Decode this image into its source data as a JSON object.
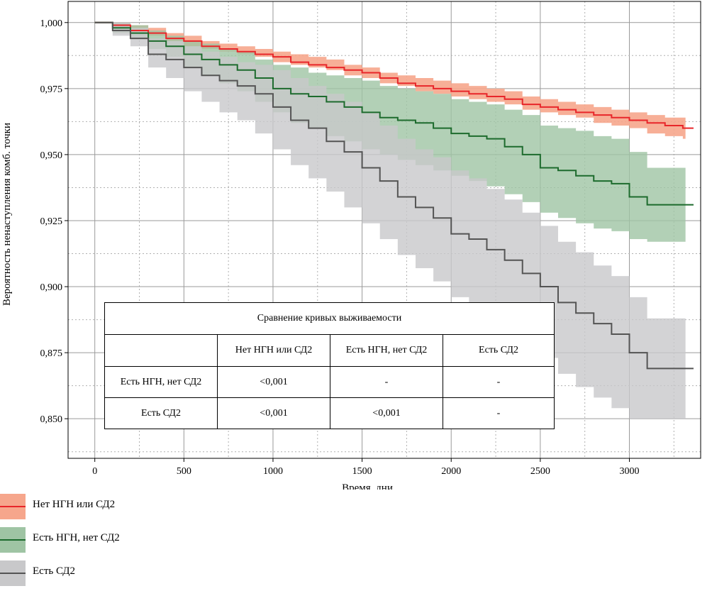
{
  "chart_data": {
    "type": "line",
    "xlabel": "Время, дни",
    "ylabel": "Вероятность ненаступления комб. точки",
    "xlim": [
      -150,
      3400
    ],
    "ylim": [
      0.835,
      1.008
    ],
    "x_ticks": [
      0,
      500,
      1000,
      1500,
      2000,
      2500,
      3000
    ],
    "x_tick_labels": [
      "0",
      "500",
      "1000",
      "1500",
      "2000",
      "2500",
      "3000"
    ],
    "y_ticks": [
      0.85,
      0.875,
      0.9,
      0.925,
      0.95,
      0.975,
      1.0
    ],
    "y_tick_labels": [
      "0,850",
      "0,875",
      "0,900",
      "0,925",
      "0,950",
      "0,975",
      "1,000"
    ],
    "grid": true,
    "series": [
      {
        "name": "Нет НГН или СД2",
        "color": "#e8262a",
        "band_color": "#f6a68c",
        "step": true,
        "x": [
          0,
          100,
          200,
          300,
          400,
          500,
          600,
          700,
          800,
          900,
          1000,
          1100,
          1200,
          1300,
          1400,
          1500,
          1600,
          1700,
          1800,
          1900,
          2000,
          2100,
          2200,
          2300,
          2400,
          2500,
          2600,
          2700,
          2800,
          2900,
          3000,
          3100,
          3200,
          3300
        ],
        "y": [
          1.0,
          0.999,
          0.997,
          0.996,
          0.994,
          0.993,
          0.991,
          0.99,
          0.989,
          0.988,
          0.987,
          0.985,
          0.984,
          0.983,
          0.982,
          0.981,
          0.979,
          0.977,
          0.976,
          0.975,
          0.974,
          0.973,
          0.972,
          0.971,
          0.969,
          0.968,
          0.967,
          0.966,
          0.965,
          0.964,
          0.963,
          0.962,
          0.961,
          0.96
        ],
        "lower": [
          1.0,
          0.998,
          0.996,
          0.995,
          0.993,
          0.991,
          0.99,
          0.989,
          0.988,
          0.987,
          0.985,
          0.984,
          0.983,
          0.982,
          0.98,
          0.979,
          0.977,
          0.976,
          0.974,
          0.973,
          0.972,
          0.971,
          0.97,
          0.969,
          0.967,
          0.966,
          0.965,
          0.964,
          0.962,
          0.961,
          0.96,
          0.958,
          0.957,
          0.956
        ],
        "upper": [
          1.0,
          1.0,
          0.999,
          0.998,
          0.996,
          0.995,
          0.993,
          0.992,
          0.991,
          0.99,
          0.989,
          0.988,
          0.987,
          0.986,
          0.984,
          0.983,
          0.981,
          0.98,
          0.979,
          0.978,
          0.977,
          0.976,
          0.975,
          0.974,
          0.972,
          0.971,
          0.97,
          0.969,
          0.968,
          0.967,
          0.966,
          0.965,
          0.964,
          0.964
        ]
      },
      {
        "name": "Есть НГН, нет СД2",
        "color": "#1d6b2d",
        "band_color": "#9fc4a4",
        "step": true,
        "x": [
          0,
          100,
          200,
          300,
          400,
          500,
          600,
          700,
          800,
          900,
          1000,
          1100,
          1200,
          1300,
          1400,
          1500,
          1600,
          1700,
          1800,
          1900,
          2000,
          2100,
          2200,
          2300,
          2400,
          2500,
          2600,
          2700,
          2800,
          2900,
          3000,
          3100,
          3200,
          3300
        ],
        "y": [
          1.0,
          0.998,
          0.996,
          0.993,
          0.991,
          0.988,
          0.986,
          0.984,
          0.982,
          0.979,
          0.975,
          0.973,
          0.972,
          0.97,
          0.968,
          0.966,
          0.964,
          0.963,
          0.962,
          0.96,
          0.958,
          0.957,
          0.956,
          0.953,
          0.95,
          0.945,
          0.944,
          0.942,
          0.94,
          0.939,
          0.934,
          0.931,
          0.931,
          0.931
        ],
        "lower": [
          1.0,
          0.996,
          0.994,
          0.99,
          0.987,
          0.983,
          0.98,
          0.977,
          0.974,
          0.97,
          0.966,
          0.962,
          0.96,
          0.957,
          0.955,
          0.952,
          0.95,
          0.948,
          0.946,
          0.944,
          0.942,
          0.94,
          0.938,
          0.935,
          0.932,
          0.928,
          0.926,
          0.924,
          0.922,
          0.921,
          0.918,
          0.917,
          0.917,
          0.917
        ],
        "upper": [
          1.0,
          1.0,
          0.999,
          0.997,
          0.995,
          0.993,
          0.992,
          0.99,
          0.989,
          0.986,
          0.984,
          0.983,
          0.981,
          0.98,
          0.979,
          0.978,
          0.976,
          0.975,
          0.974,
          0.973,
          0.971,
          0.97,
          0.969,
          0.967,
          0.965,
          0.961,
          0.96,
          0.959,
          0.957,
          0.956,
          0.951,
          0.945,
          0.945,
          0.945
        ]
      },
      {
        "name": "Есть СД2",
        "color": "#545454",
        "band_color": "#c8c8ca",
        "step": true,
        "x": [
          0,
          100,
          200,
          300,
          400,
          500,
          600,
          700,
          800,
          900,
          1000,
          1100,
          1200,
          1300,
          1400,
          1500,
          1600,
          1700,
          1800,
          1900,
          2000,
          2100,
          2200,
          2300,
          2400,
          2500,
          2600,
          2700,
          2800,
          2900,
          3000,
          3100,
          3200,
          3300
        ],
        "y": [
          1.0,
          0.997,
          0.994,
          0.988,
          0.986,
          0.983,
          0.98,
          0.978,
          0.976,
          0.973,
          0.968,
          0.963,
          0.96,
          0.955,
          0.951,
          0.945,
          0.94,
          0.934,
          0.93,
          0.926,
          0.92,
          0.918,
          0.914,
          0.91,
          0.905,
          0.9,
          0.894,
          0.89,
          0.886,
          0.882,
          0.875,
          0.869,
          0.869,
          0.869
        ],
        "lower": [
          1.0,
          0.995,
          0.991,
          0.983,
          0.979,
          0.974,
          0.97,
          0.966,
          0.963,
          0.958,
          0.952,
          0.946,
          0.941,
          0.936,
          0.93,
          0.924,
          0.918,
          0.912,
          0.907,
          0.902,
          0.896,
          0.892,
          0.888,
          0.883,
          0.878,
          0.873,
          0.867,
          0.862,
          0.858,
          0.854,
          0.85,
          0.85,
          0.85,
          0.85
        ],
        "upper": [
          1.0,
          1.0,
          0.998,
          0.994,
          0.993,
          0.991,
          0.989,
          0.987,
          0.985,
          0.984,
          0.982,
          0.979,
          0.976,
          0.973,
          0.97,
          0.966,
          0.961,
          0.956,
          0.952,
          0.949,
          0.944,
          0.941,
          0.937,
          0.933,
          0.928,
          0.923,
          0.917,
          0.913,
          0.908,
          0.904,
          0.896,
          0.888,
          0.888,
          0.888
        ]
      }
    ]
  },
  "table": {
    "title": "Сравнение кривых выживаемости",
    "columns": [
      "",
      "Нет НГН или СД2",
      "Есть НГН, нет СД2",
      "Есть СД2"
    ],
    "rows": [
      [
        "Есть НГН, нет СД2",
        "<0,001",
        "-",
        "-"
      ],
      [
        "Есть СД2",
        "<0,001",
        "<0,001",
        "-"
      ]
    ]
  },
  "legend": {
    "items": [
      {
        "label": "Нет НГН или СД2",
        "line_color": "#e8262a",
        "band_color": "#f6a68c"
      },
      {
        "label": "Есть НГН, нет СД2",
        "line_color": "#1d6b2d",
        "band_color": "#9fc4a4"
      },
      {
        "label": "Есть СД2",
        "line_color": "#545454",
        "band_color": "#c8c8ca"
      }
    ]
  }
}
